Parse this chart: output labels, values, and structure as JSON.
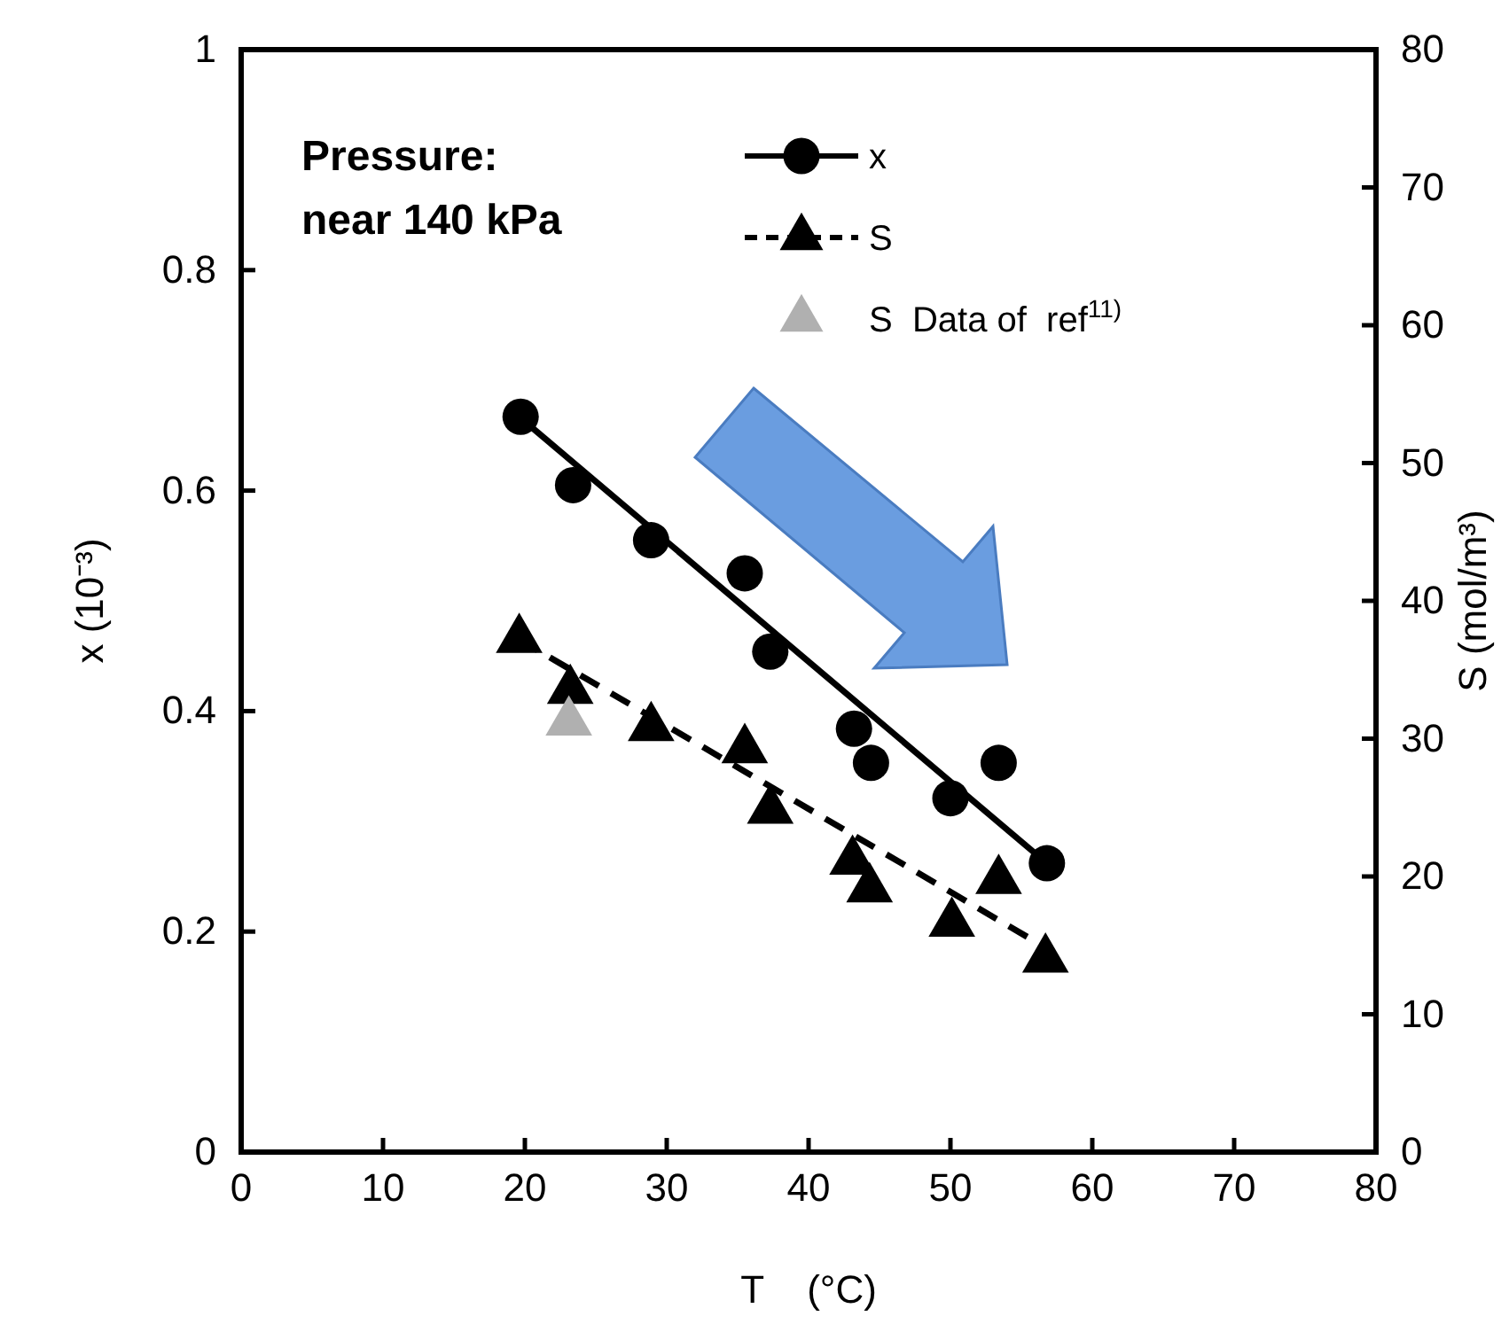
{
  "chart_data": {
    "type": "scatter",
    "xlabel": "T    (°C)",
    "ylabel": "x (10⁻³)",
    "y2label": "S (mol/m³)",
    "xlim": [
      0,
      80
    ],
    "xticks": [
      0,
      10,
      20,
      30,
      40,
      50,
      60,
      70,
      80
    ],
    "ylim": [
      0,
      1
    ],
    "yticks": [
      0,
      0.2,
      0.4,
      0.6,
      0.8,
      1
    ],
    "y2lim": [
      0,
      80
    ],
    "y2ticks": [
      0,
      10,
      20,
      30,
      40,
      50,
      60,
      70,
      80
    ],
    "annotations": [
      "Pressure:",
      "near 140 kPa"
    ],
    "legend": "top right",
    "grid": false,
    "series": [
      {
        "name": "x",
        "marker": "circle",
        "color": "#000000",
        "x": [
          19.7,
          23.4,
          28.9,
          35.5,
          37.3,
          43.2,
          44.4,
          50.0,
          53.4,
          56.8
        ],
        "values": [
          0.667,
          0.605,
          0.555,
          0.525,
          0.454,
          0.384,
          0.353,
          0.321,
          0.353,
          0.262
        ]
      },
      {
        "type": "line",
        "line_style": "solid",
        "color": "#000000",
        "x": [
          19.6,
          56.8
        ],
        "values": [
          0.667,
          0.262
        ]
      },
      {
        "name": "S",
        "marker": "triangle",
        "axis": "y2",
        "color": "#000000",
        "x": [
          19.6,
          23.2,
          28.9,
          35.5,
          37.3,
          43.1,
          44.3,
          50.1,
          53.4,
          56.7
        ],
        "values": [
          37.2,
          33.5,
          30.8,
          29.2,
          24.8,
          21.1,
          19.1,
          16.6,
          19.7,
          14.0
        ]
      },
      {
        "type": "line",
        "line_style": "dashed",
        "axis": "y2",
        "color": "#000000",
        "x": [
          19.6,
          57.1
        ],
        "values": [
          37.2,
          14.6
        ]
      },
      {
        "name": "S  Data of  ref$^{11)}$",
        "marker": "triangle",
        "axis": "y2",
        "color": "#b0b0b0",
        "x": [
          23.1
        ],
        "values": [
          31.2
        ]
      }
    ]
  }
}
